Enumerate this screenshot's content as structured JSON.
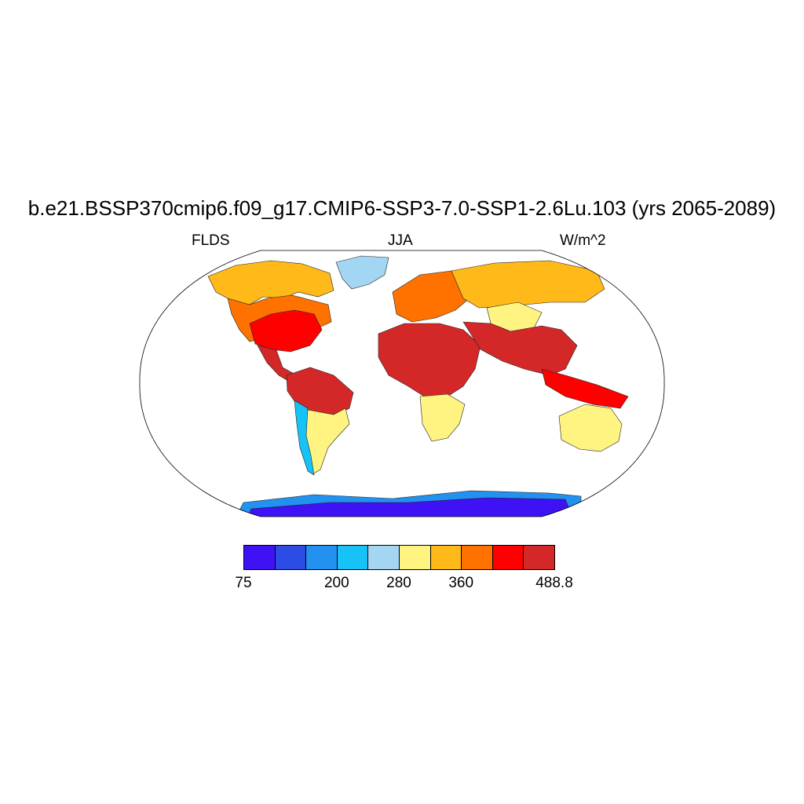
{
  "title": "b.e21.BSSP370cmip6.f09_g17.CMIP6-SSP3-7.0-SSP1-2.6Lu.103 (yrs 2065-2089)",
  "subtitle_left": "FLDS",
  "subtitle_center": "JJA",
  "subtitle_right": "W/m^2",
  "colorbar": {
    "colors": [
      "#3e12f5",
      "#2d4ce6",
      "#2391f0",
      "#17c2f7",
      "#a3d6f2",
      "#fff482",
      "#ffb919",
      "#ff7200",
      "#ff0000",
      "#d42828"
    ],
    "labels": [
      {
        "text": "75",
        "index": 0
      },
      {
        "text": "200",
        "index": 3
      },
      {
        "text": "280",
        "index": 5
      },
      {
        "text": "360",
        "index": 7
      },
      {
        "text": "488.8",
        "index": 10
      }
    ]
  },
  "regions": [
    {
      "name": "north-america-north",
      "level": 6
    },
    {
      "name": "north-america-mid",
      "level": 7
    },
    {
      "name": "north-america-south",
      "level": 8
    },
    {
      "name": "central-america",
      "level": 9
    },
    {
      "name": "greenland",
      "level": 4
    },
    {
      "name": "south-america-north",
      "level": 9
    },
    {
      "name": "south-america-south",
      "level": 5
    },
    {
      "name": "andes",
      "level": 3
    },
    {
      "name": "africa-north",
      "level": 9
    },
    {
      "name": "africa-south",
      "level": 5
    },
    {
      "name": "europe",
      "level": 7
    },
    {
      "name": "northern-asia",
      "level": 6
    },
    {
      "name": "tibetan-plateau",
      "level": 5
    },
    {
      "name": "south-asia",
      "level": 9
    },
    {
      "name": "southeast-asia",
      "level": 8
    },
    {
      "name": "australia-interior",
      "level": 5
    },
    {
      "name": "antarctica-coast",
      "level": 2
    },
    {
      "name": "antarctica-interior",
      "level": 0
    }
  ]
}
